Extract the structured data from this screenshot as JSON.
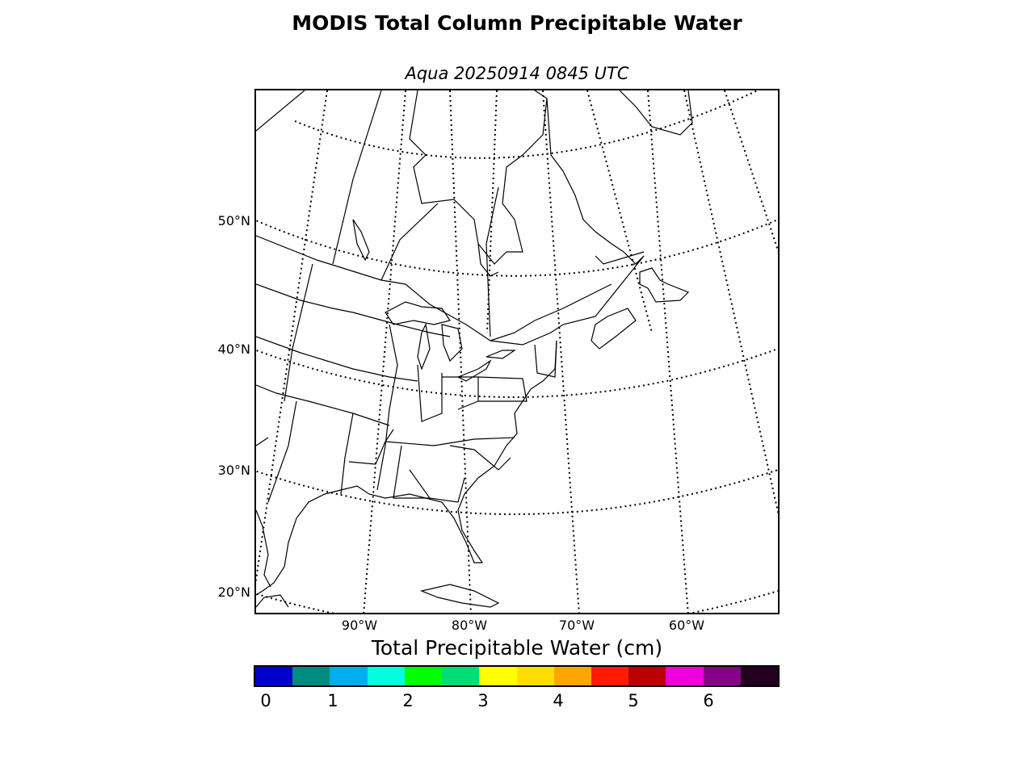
{
  "figure": {
    "title": "MODIS Total Column Precipitable Water",
    "subtitle": "Aqua 20250914 0845 UTC"
  },
  "map": {
    "projection": "conic",
    "grid": true,
    "lat_labels": [
      "50°N",
      "40°N",
      "30°N",
      "20°N"
    ],
    "lon_labels": [
      "90°W",
      "80°W",
      "70°W",
      "60°W"
    ],
    "features": [
      "coastlines",
      "country-borders",
      "state-province-borders",
      "graticule"
    ]
  },
  "colorbar": {
    "label": "Total Precipitable Water (cm)",
    "ticks": [
      "0",
      "1",
      "2",
      "3",
      "4",
      "5",
      "6"
    ],
    "colors": [
      "#0000cc",
      "#008b80",
      "#00aeef",
      "#00ffe1",
      "#00ff00",
      "#00dd77",
      "#ffff00",
      "#ffdd00",
      "#ffa500",
      "#ff1a00",
      "#bb0000",
      "#ee00dd",
      "#880088",
      "#22001e"
    ]
  }
}
